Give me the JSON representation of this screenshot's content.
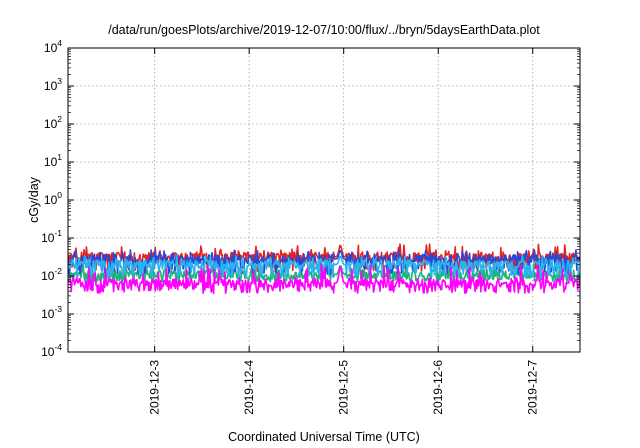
{
  "chart_data": {
    "type": "line",
    "title": "/data/run/goesPlots/archive/2019-12-07/10:00/flux/../bryn/5daysEarthData.plot",
    "xlabel": "Coordinated Universal Time (UTC)",
    "ylabel": "cGy/day",
    "y_scale": "log",
    "ylim": [
      0.0001,
      10000
    ],
    "y_ticks": [
      {
        "value": 0.0001,
        "base": "10",
        "exp": "-4"
      },
      {
        "value": 0.001,
        "base": "10",
        "exp": "-3"
      },
      {
        "value": 0.01,
        "base": "10",
        "exp": "-2"
      },
      {
        "value": 0.1,
        "base": "10",
        "exp": "-1"
      },
      {
        "value": 1,
        "base": "10",
        "exp": "0"
      },
      {
        "value": 10,
        "base": "10",
        "exp": "1"
      },
      {
        "value": 100,
        "base": "10",
        "exp": "2"
      },
      {
        "value": 1000,
        "base": "10",
        "exp": "3"
      },
      {
        "value": 10000,
        "base": "10",
        "exp": "4"
      }
    ],
    "x_type": "time",
    "xlim": [
      "2019-12-02T02:00",
      "2019-12-07T12:00"
    ],
    "x_ticks": [
      "2019-12-3",
      "2019-12-4",
      "2019-12-5",
      "2019-12-6",
      "2019-12-7"
    ],
    "x_tick_values": [
      "2019-12-03T00:00",
      "2019-12-04T00:00",
      "2019-12-05T00:00",
      "2019-12-06T00:00",
      "2019-12-07T00:00"
    ],
    "grid": true,
    "data_gap": [
      "2019-12-04T21:30",
      "2019-12-05T00:30"
    ],
    "series": [
      {
        "color": "#e8221c",
        "level": 0.032,
        "low": 0.012,
        "high": 0.07
      },
      {
        "color": "#1db37a",
        "level": 0.011,
        "low": 0.007,
        "high": 0.02
      },
      {
        "color": "#2a47d6",
        "level": 0.028,
        "low": 0.011,
        "high": 0.05
      },
      {
        "color": "#2ab4ee",
        "level": 0.02,
        "low": 0.009,
        "high": 0.035
      },
      {
        "color": "#ff00ff",
        "level": 0.0065,
        "low": 0.0035,
        "high": 0.02
      }
    ]
  }
}
